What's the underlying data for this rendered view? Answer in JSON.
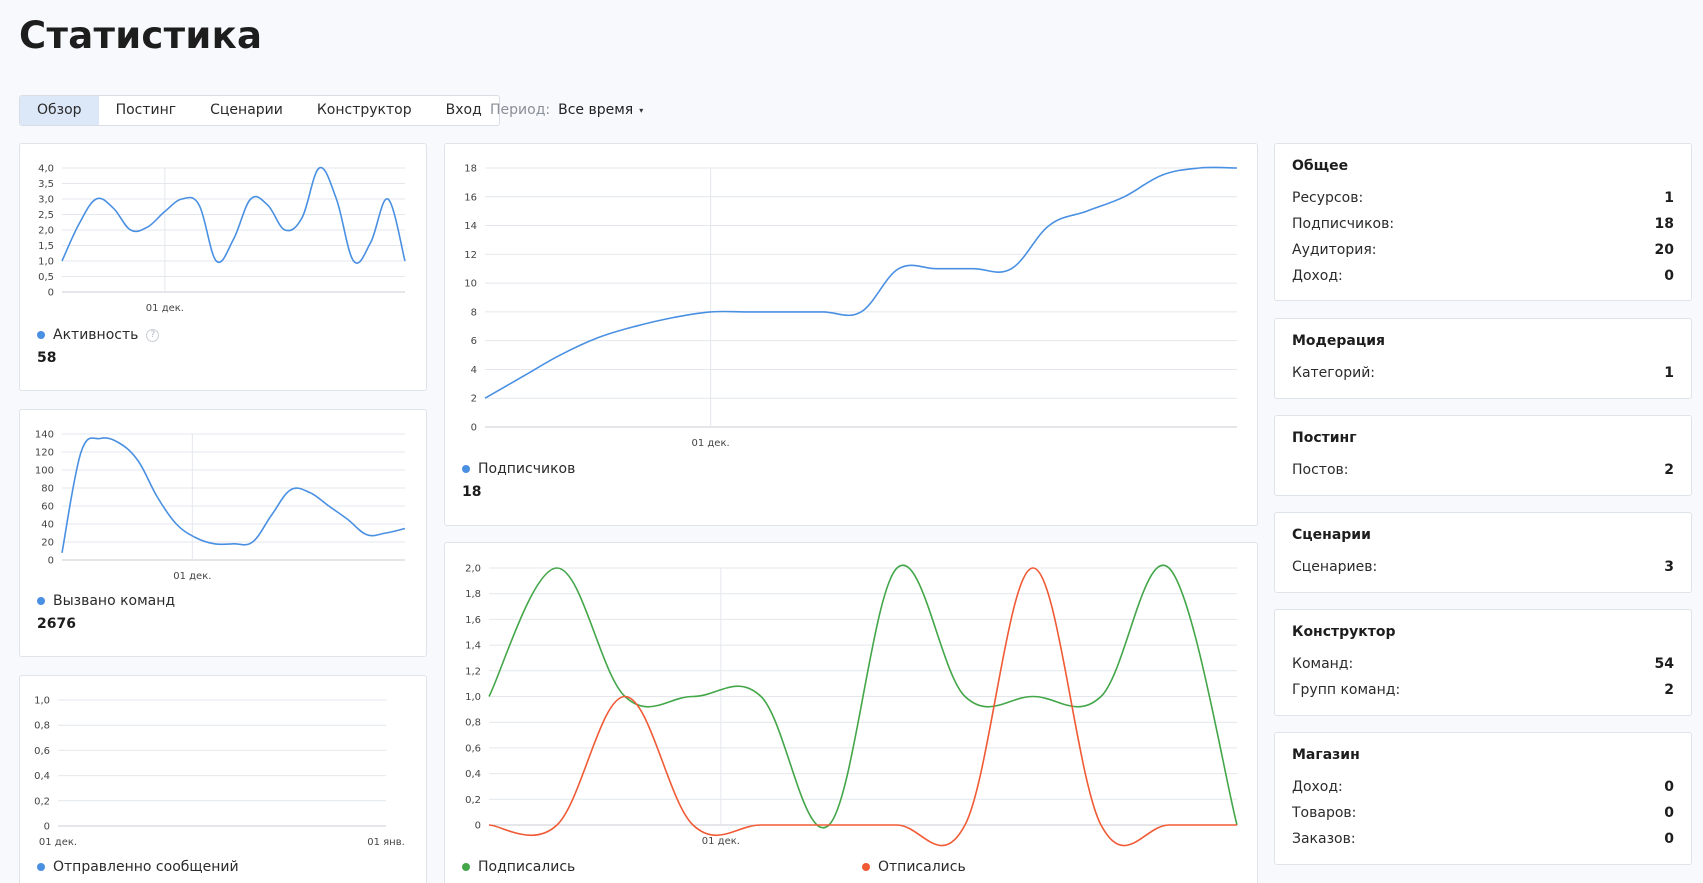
{
  "page": {
    "title": "Статистика"
  },
  "tabs": [
    {
      "label": "Обзор",
      "active": true
    },
    {
      "label": "Постинг"
    },
    {
      "label": "Сценарии"
    },
    {
      "label": "Конструктор"
    },
    {
      "label": "Вход"
    }
  ],
  "period": {
    "label": "Период:",
    "value": "Все время",
    "caret": "▾"
  },
  "colors": {
    "blue": "#4a90e2",
    "green": "#43a649",
    "red": "#f05a35",
    "grid": "#e4e7ec"
  },
  "widgets": {
    "activity": {
      "label": "Активность",
      "value": "58",
      "help_icon": "question-icon",
      "help_glyph": "?"
    },
    "commands": {
      "label": "Вызвано команд",
      "value": "2676"
    },
    "messages": {
      "label": "Отправленно сообщений"
    },
    "subscribers": {
      "label": "Подписчиков",
      "value": "18"
    },
    "subscribed_unsubscribed": {
      "labels": [
        "Подписались",
        "Отписались"
      ]
    }
  },
  "stats": {
    "general": {
      "title": "Общее",
      "rows": [
        {
          "label": "Ресурсов:",
          "value": "1"
        },
        {
          "label": "Подписчиков:",
          "value": "18"
        },
        {
          "label": "Аудитория:",
          "value": "20"
        },
        {
          "label": "Доход:",
          "value": "0"
        }
      ]
    },
    "moderation": {
      "title": "Модерация",
      "rows": [
        {
          "label": "Категорий:",
          "value": "1"
        }
      ]
    },
    "posting": {
      "title": "Постинг",
      "rows": [
        {
          "label": "Постов:",
          "value": "2"
        }
      ]
    },
    "scenarios": {
      "title": "Сценарии",
      "rows": [
        {
          "label": "Сценариев:",
          "value": "3"
        }
      ]
    },
    "builder": {
      "title": "Конструктор",
      "rows": [
        {
          "label": "Команд:",
          "value": "54"
        },
        {
          "label": "Групп команд:",
          "value": "2"
        }
      ]
    },
    "shop": {
      "title": "Магазин",
      "rows": [
        {
          "label": "Доход:",
          "value": "0"
        },
        {
          "label": "Товаров:",
          "value": "0"
        },
        {
          "label": "Заказов:",
          "value": "0"
        }
      ]
    }
  },
  "chart_data": [
    {
      "id": "activity",
      "type": "line",
      "ylim": [
        0,
        4
      ],
      "yticks": [
        "0",
        "0,5",
        "1,0",
        "1,5",
        "2,0",
        "2,5",
        "3,0",
        "3,5",
        "4,0"
      ],
      "xticks": [
        {
          "label": "01 дек.",
          "at": 0.3
        }
      ],
      "series": [
        {
          "color": "#4a90e2",
          "values": [
            1.0,
            2.2,
            3.0,
            2.7,
            2.0,
            2.1,
            2.6,
            3.0,
            2.8,
            1.0,
            1.7,
            3.0,
            2.8,
            2.0,
            2.4,
            4.0,
            3.0,
            1.0,
            1.6,
            3.0,
            1.0
          ]
        }
      ]
    },
    {
      "id": "commands",
      "type": "line",
      "ylim": [
        0,
        140
      ],
      "yticks": [
        "0",
        "20",
        "40",
        "60",
        "80",
        "100",
        "120",
        "140"
      ],
      "xticks": [
        {
          "label": "01 дек.",
          "at": 0.38
        }
      ],
      "series": [
        {
          "color": "#4a90e2",
          "values": [
            8,
            120,
            135,
            130,
            110,
            70,
            40,
            25,
            18,
            18,
            20,
            50,
            78,
            75,
            60,
            45,
            28,
            30,
            35
          ]
        }
      ]
    },
    {
      "id": "messages",
      "type": "line",
      "ylim": [
        0,
        1
      ],
      "yticks": [
        "0",
        "0,2",
        "0,4",
        "0,6",
        "0,8",
        "1,0"
      ],
      "xticks": [
        {
          "label": "01 дек.",
          "at": 0.0
        },
        {
          "label": "01 янв.",
          "at": 1.0
        }
      ],
      "series": []
    },
    {
      "id": "subscribers",
      "type": "line",
      "ylim": [
        0,
        18
      ],
      "yticks": [
        "0",
        "2",
        "4",
        "6",
        "8",
        "10",
        "12",
        "14",
        "16",
        "18"
      ],
      "xticks": [
        {
          "label": "01 дек.",
          "at": 0.3
        }
      ],
      "series": [
        {
          "color": "#4a90e2",
          "values": [
            2,
            3.5,
            5,
            6.2,
            7,
            7.6,
            8,
            8,
            8,
            8,
            8,
            11,
            11,
            11,
            11,
            14,
            15,
            16,
            17.5,
            18,
            18
          ]
        }
      ]
    },
    {
      "id": "subscribed_unsubscribed",
      "type": "line",
      "ylim": [
        0,
        2
      ],
      "yticks": [
        "0",
        "0,2",
        "0,4",
        "0,6",
        "0,8",
        "1,0",
        "1,2",
        "1,4",
        "1,6",
        "1,8",
        "2,0"
      ],
      "xticks": [
        {
          "label": "01 дек.",
          "at": 0.31
        }
      ],
      "series": [
        {
          "name": "Подписались",
          "color": "#43a649",
          "values": [
            1,
            2,
            1,
            1,
            1,
            0,
            2,
            1,
            1,
            1,
            2,
            0
          ]
        },
        {
          "name": "Отписались",
          "color": "#f05a35",
          "values": [
            0,
            0,
            1,
            0,
            0,
            0,
            0,
            0,
            2,
            0,
            0,
            0
          ]
        }
      ]
    }
  ]
}
